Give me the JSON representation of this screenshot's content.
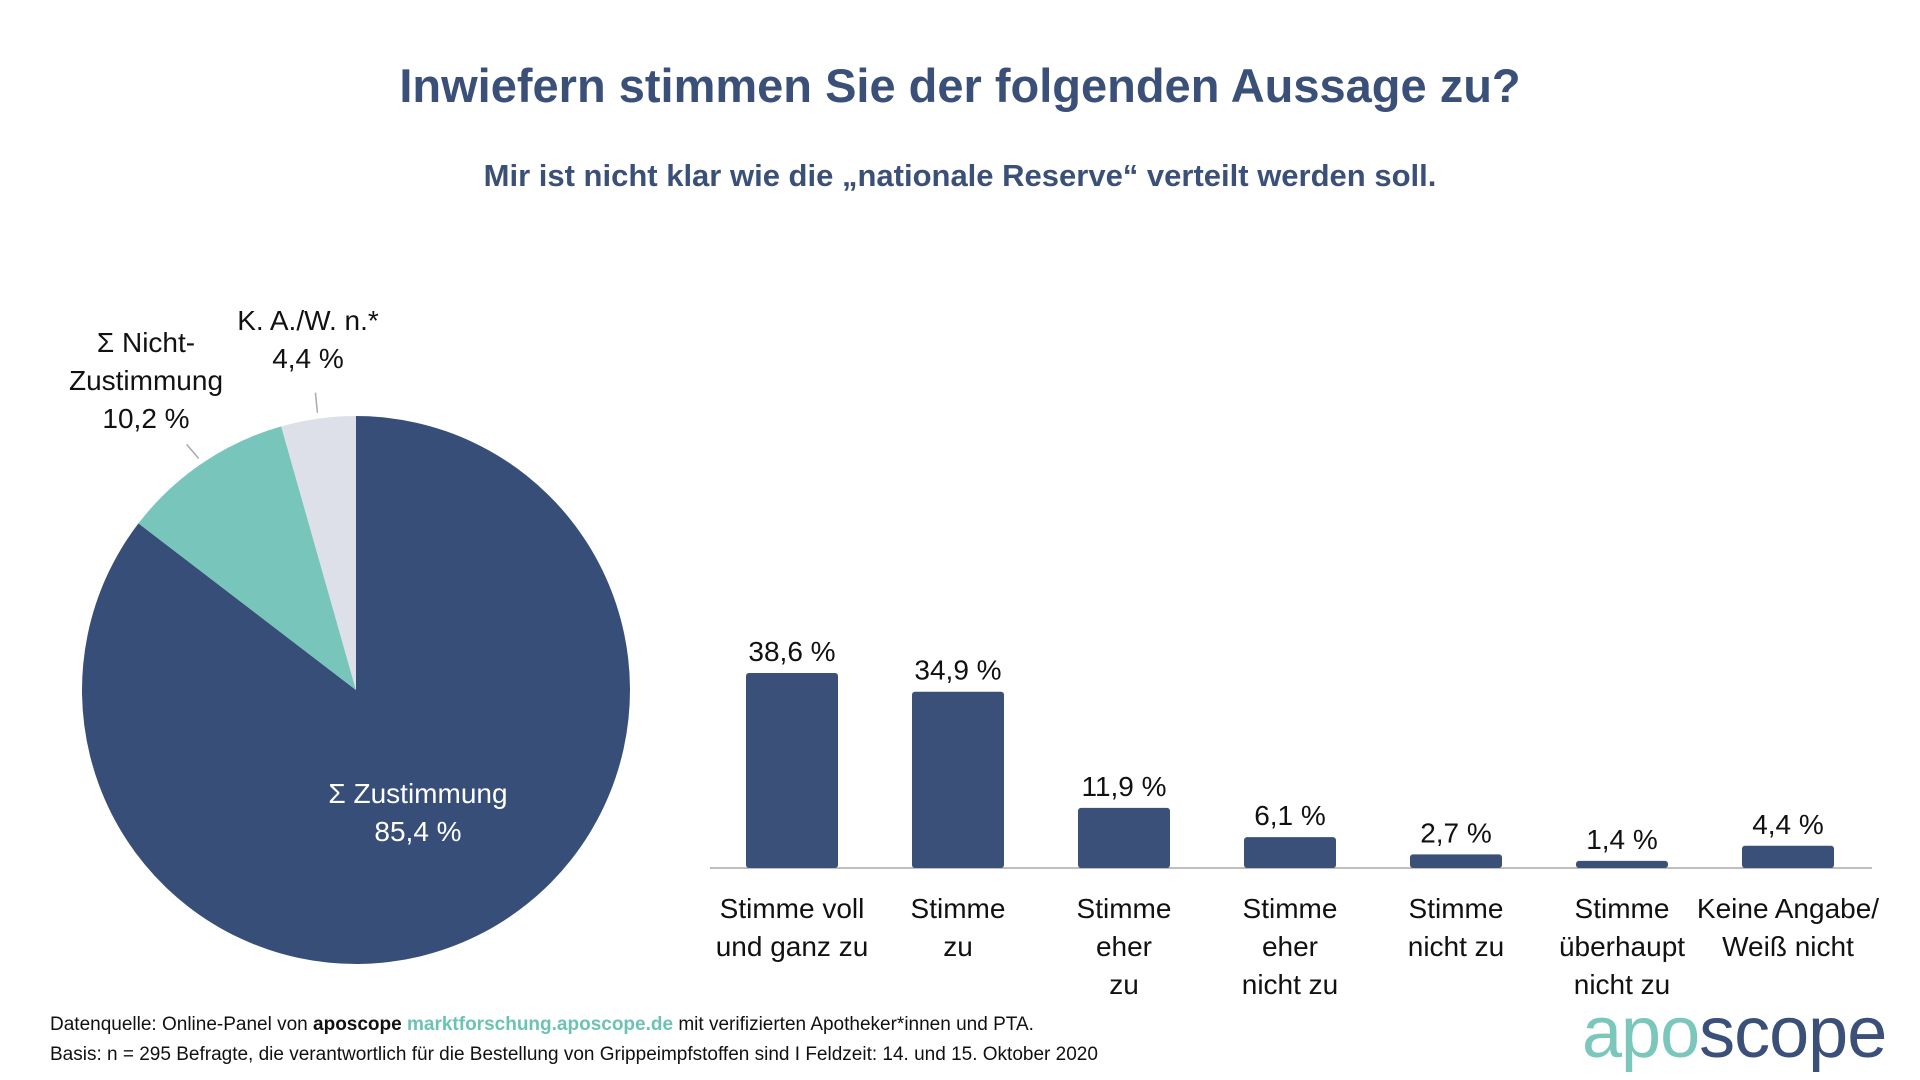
{
  "title": "Inwiefern stimmen Sie der folgenden Aussage zu?",
  "subtitle": "Mir ist nicht klar wie die „nationale Reserve“ verteilt werden soll.",
  "colors": {
    "navy": "#374f78",
    "teal": "#78c6bb",
    "grey": "#dde0e8",
    "bar": "#3b5078",
    "title": "#3b5078"
  },
  "chart_data": [
    {
      "type": "pie",
      "slices": [
        {
          "label_lines": [
            "Σ Zustimmung",
            "85,4 %"
          ],
          "value": 85.4,
          "color": "#374f78"
        },
        {
          "label_lines": [
            "Σ Nicht-",
            "Zustimmung",
            "10,2 %"
          ],
          "value": 10.2,
          "color": "#78c6bb"
        },
        {
          "label_lines": [
            "K. A./W. n.*",
            "4,4 %"
          ],
          "value": 4.4,
          "color": "#dde0e8"
        }
      ]
    },
    {
      "type": "bar",
      "categories": [
        [
          "Stimme voll",
          "und ganz zu"
        ],
        [
          "Stimme",
          "zu"
        ],
        [
          "Stimme",
          "eher",
          "zu"
        ],
        [
          "Stimme",
          "eher",
          "nicht zu"
        ],
        [
          "Stimme",
          "nicht zu"
        ],
        [
          "Stimme",
          "überhaupt",
          "nicht zu"
        ],
        [
          "Keine Angabe/",
          "Weiß nicht"
        ]
      ],
      "values": [
        38.6,
        34.9,
        11.9,
        6.1,
        2.7,
        1.4,
        4.4
      ],
      "value_labels": [
        "38,6 %",
        "34,9 %",
        "11,9 %",
        "6,1 %",
        "2,7 %",
        "1,4 %",
        "4,4 %"
      ],
      "ylim": [
        0,
        40
      ],
      "grid": false
    }
  ],
  "footer": {
    "line1_prefix": "Datenquelle: Online-Panel von ",
    "line1_brand": "aposcope",
    "line1_link": "marktforschung.aposcope.de",
    "line1_suffix": " mit verifizierten Apotheker*innen und PTA.",
    "line2": "Basis: n = 295 Befragte, die verantwortlich für die Bestellung von Grippeimpfstoffen sind I Feldzeit: 14. und 15. Oktober 2020"
  },
  "logo": {
    "part1": "apo",
    "part2": "scope"
  }
}
